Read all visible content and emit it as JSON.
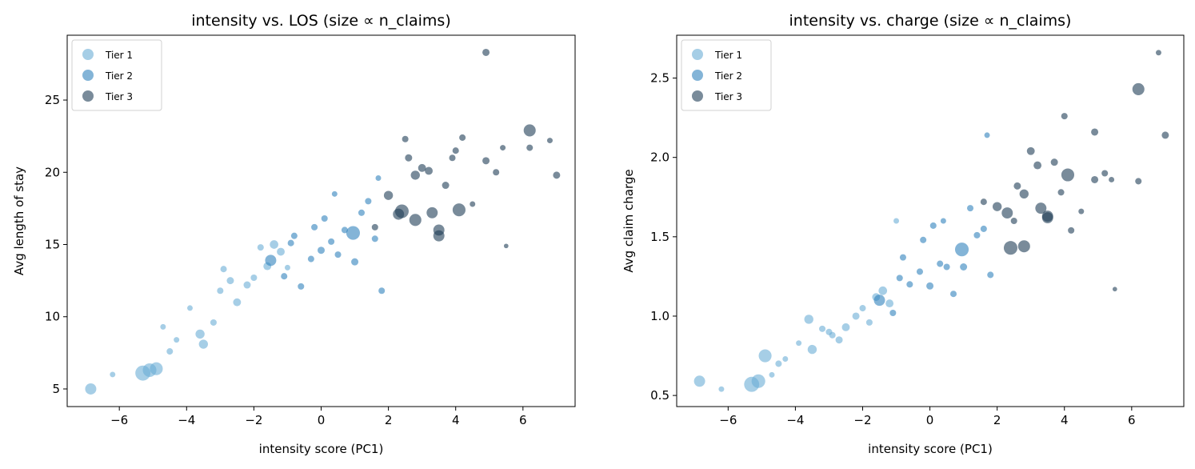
{
  "chart_data": [
    {
      "type": "scatter",
      "title": "intensity vs. LOS (size ∝ n_claims)",
      "xlabel": "intensity score (PC1)",
      "ylabel": "Avg length of stay",
      "xlim": [
        -7.55,
        7.55
      ],
      "ylim": [
        3.78,
        29.49
      ],
      "xticks": [
        {
          "value": -6,
          "label": "−6"
        },
        {
          "value": -4,
          "label": "−4"
        },
        {
          "value": -2,
          "label": "−2"
        },
        0,
        2,
        4,
        6
      ],
      "yticks": [
        5,
        10,
        15,
        20,
        25
      ],
      "legend": "upper left",
      "series": [
        {
          "name": "Tier 1",
          "color": "#6baed6",
          "x": [
            -6.85,
            -6.2,
            -5.3,
            -5.1,
            -4.9,
            -4.7,
            -4.5,
            -4.3,
            -3.9,
            -3.6,
            -3.5,
            -3.2,
            -3.0,
            -2.7,
            -2.5,
            -2.2,
            -2.0,
            -1.6,
            -1.4,
            -1.2,
            -1.0,
            -2.9,
            -1.8
          ],
          "values": [
            5.0,
            6.0,
            6.1,
            6.3,
            6.4,
            9.3,
            7.6,
            8.4,
            10.6,
            8.8,
            8.1,
            9.6,
            11.8,
            12.5,
            11.0,
            12.2,
            12.7,
            13.5,
            15.0,
            14.5,
            13.4,
            13.3,
            14.8
          ],
          "sizes": [
            60,
            15,
            110,
            90,
            80,
            15,
            20,
            15,
            15,
            40,
            40,
            20,
            20,
            25,
            30,
            25,
            20,
            30,
            35,
            30,
            15,
            20,
            20
          ]
        },
        {
          "name": "Tier 2",
          "color": "#3182bd",
          "x": [
            -1.5,
            -1.1,
            -0.8,
            -0.6,
            -0.3,
            0.0,
            0.1,
            0.3,
            0.5,
            0.7,
            0.95,
            1.0,
            1.2,
            1.4,
            1.6,
            1.8,
            -0.2,
            0.4,
            1.7,
            -0.9
          ],
          "values": [
            13.9,
            12.8,
            15.6,
            12.1,
            14.0,
            14.6,
            16.8,
            15.2,
            14.3,
            16.0,
            15.8,
            13.8,
            17.2,
            18.0,
            15.4,
            11.8,
            16.2,
            18.5,
            19.6,
            15.1
          ],
          "sizes": [
            60,
            20,
            20,
            20,
            20,
            25,
            20,
            20,
            20,
            20,
            90,
            25,
            20,
            20,
            20,
            20,
            20,
            15,
            15,
            20
          ]
        },
        {
          "name": "Tier 3",
          "color": "#1f3d57",
          "x": [
            1.6,
            2.0,
            2.3,
            2.4,
            2.6,
            2.8,
            2.8,
            3.0,
            3.3,
            3.5,
            3.5,
            3.7,
            4.0,
            4.1,
            4.2,
            4.5,
            4.9,
            4.9,
            5.2,
            5.4,
            5.5,
            6.2,
            6.2,
            6.8,
            7.0,
            3.9,
            2.5,
            3.2
          ],
          "values": [
            16.2,
            18.4,
            17.1,
            17.3,
            21.0,
            19.8,
            16.7,
            20.3,
            17.2,
            16.0,
            15.6,
            19.1,
            21.5,
            17.4,
            22.4,
            17.8,
            20.8,
            28.3,
            20.0,
            21.7,
            14.9,
            22.9,
            21.7,
            22.2,
            19.8,
            21.0,
            22.3,
            20.1
          ],
          "sizes": [
            20,
            40,
            60,
            90,
            25,
            40,
            70,
            30,
            60,
            60,
            60,
            25,
            20,
            80,
            20,
            15,
            25,
            25,
            20,
            15,
            10,
            70,
            20,
            15,
            25,
            20,
            20,
            30
          ]
        }
      ]
    },
    {
      "type": "scatter",
      "title": "intensity vs. charge (size ∝ n_claims)",
      "xlabel": "intensity score (PC1)",
      "ylabel": "Avg claim charge",
      "xlim": [
        -7.53,
        7.55
      ],
      "ylim": [
        0.43,
        2.77
      ],
      "xticks": [
        {
          "value": -6,
          "label": "−6"
        },
        {
          "value": -4,
          "label": "−4"
        },
        {
          "value": -2,
          "label": "−2"
        },
        0,
        2,
        4,
        6
      ],
      "yticks": [
        0.5,
        {
          "value": 1,
          "label": "1.0"
        },
        1.5,
        {
          "value": 2,
          "label": "2.0"
        },
        2.5
      ],
      "legend": "upper left",
      "series": [
        {
          "name": "Tier 1",
          "color": "#6baed6",
          "x": [
            -6.85,
            -6.2,
            -5.3,
            -5.1,
            -4.9,
            -4.7,
            -4.5,
            -4.3,
            -3.9,
            -3.6,
            -3.5,
            -3.2,
            -3.0,
            -2.7,
            -2.5,
            -2.2,
            -2.0,
            -1.6,
            -1.4,
            -1.2,
            -1.0,
            -2.9,
            -1.8
          ],
          "values": [
            0.59,
            0.54,
            0.57,
            0.59,
            0.75,
            0.63,
            0.7,
            0.73,
            0.83,
            0.98,
            0.79,
            0.92,
            0.9,
            0.85,
            0.93,
            1.0,
            1.05,
            1.12,
            1.16,
            1.08,
            1.6,
            0.88,
            0.96
          ],
          "sizes": [
            60,
            15,
            110,
            90,
            80,
            15,
            20,
            15,
            15,
            40,
            40,
            20,
            20,
            25,
            30,
            25,
            20,
            30,
            35,
            30,
            15,
            20,
            20
          ]
        },
        {
          "name": "Tier 2",
          "color": "#3182bd",
          "x": [
            -1.5,
            -1.1,
            -0.8,
            -0.6,
            -0.3,
            0.0,
            0.1,
            0.3,
            0.5,
            0.7,
            0.95,
            1.0,
            1.2,
            1.4,
            1.6,
            1.8,
            -0.2,
            0.4,
            1.7,
            -0.9
          ],
          "values": [
            1.1,
            1.02,
            1.37,
            1.2,
            1.28,
            1.19,
            1.57,
            1.33,
            1.31,
            1.14,
            1.42,
            1.31,
            1.68,
            1.51,
            1.55,
            1.26,
            1.48,
            1.6,
            2.14,
            1.24
          ],
          "sizes": [
            60,
            20,
            20,
            20,
            20,
            25,
            20,
            20,
            20,
            20,
            90,
            25,
            20,
            20,
            20,
            20,
            20,
            15,
            15,
            20
          ]
        },
        {
          "name": "Tier 3",
          "color": "#1f3d57",
          "x": [
            1.6,
            2.0,
            2.3,
            2.4,
            2.6,
            2.8,
            2.8,
            3.0,
            3.3,
            3.5,
            3.5,
            3.7,
            4.0,
            4.1,
            4.2,
            4.5,
            4.9,
            4.9,
            5.2,
            5.4,
            5.5,
            6.2,
            6.2,
            6.8,
            7.0,
            3.9,
            2.5,
            3.2
          ],
          "values": [
            1.72,
            1.69,
            1.65,
            1.43,
            1.82,
            1.77,
            1.44,
            2.04,
            1.68,
            1.62,
            1.63,
            1.97,
            2.26,
            1.89,
            1.54,
            1.66,
            2.16,
            1.86,
            1.9,
            1.86,
            1.17,
            2.43,
            1.85,
            2.66,
            2.14,
            1.78,
            1.6,
            1.95
          ],
          "sizes": [
            20,
            40,
            60,
            90,
            25,
            40,
            70,
            30,
            60,
            60,
            60,
            25,
            20,
            80,
            20,
            15,
            25,
            25,
            20,
            15,
            10,
            70,
            20,
            15,
            25,
            20,
            20,
            30
          ]
        }
      ]
    }
  ]
}
